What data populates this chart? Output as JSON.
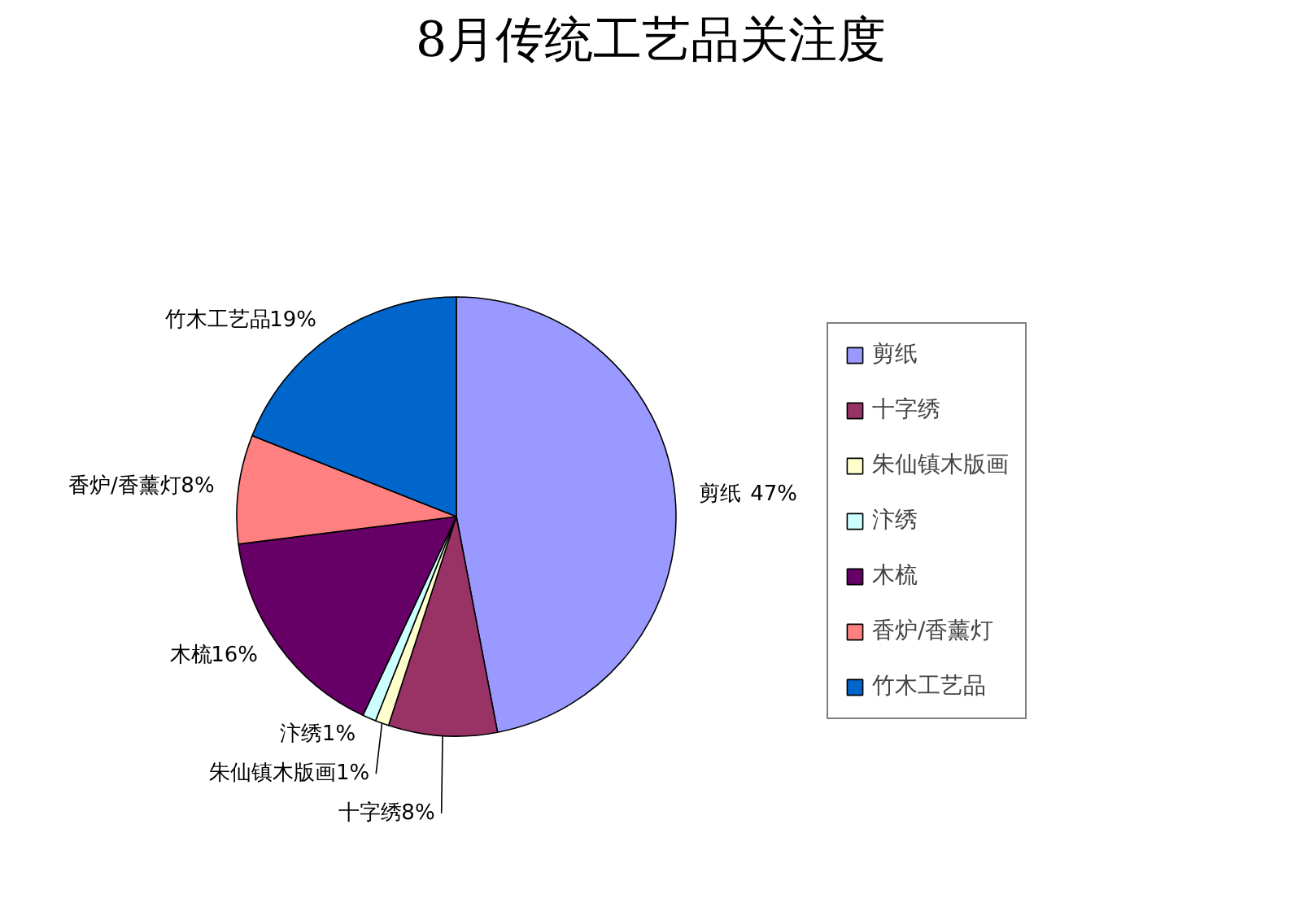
{
  "chart_data": {
    "type": "pie",
    "title": "8月传统工艺品关注度",
    "categories": [
      "剪纸",
      "十字绣",
      "朱仙镇木版画",
      "汴绣",
      "木梳",
      "香炉/香薰灯",
      "竹木工艺品"
    ],
    "values": [
      47,
      8,
      1,
      1,
      16,
      8,
      19
    ],
    "colors": [
      "#9999ff",
      "#993366",
      "#ffffcc",
      "#ccffff",
      "#660066",
      "#ff8080",
      "#0066cc"
    ],
    "value_labels": [
      "47%",
      "8%",
      "1%",
      "1%",
      "16%",
      "8%",
      "19%"
    ],
    "legend": "right"
  }
}
